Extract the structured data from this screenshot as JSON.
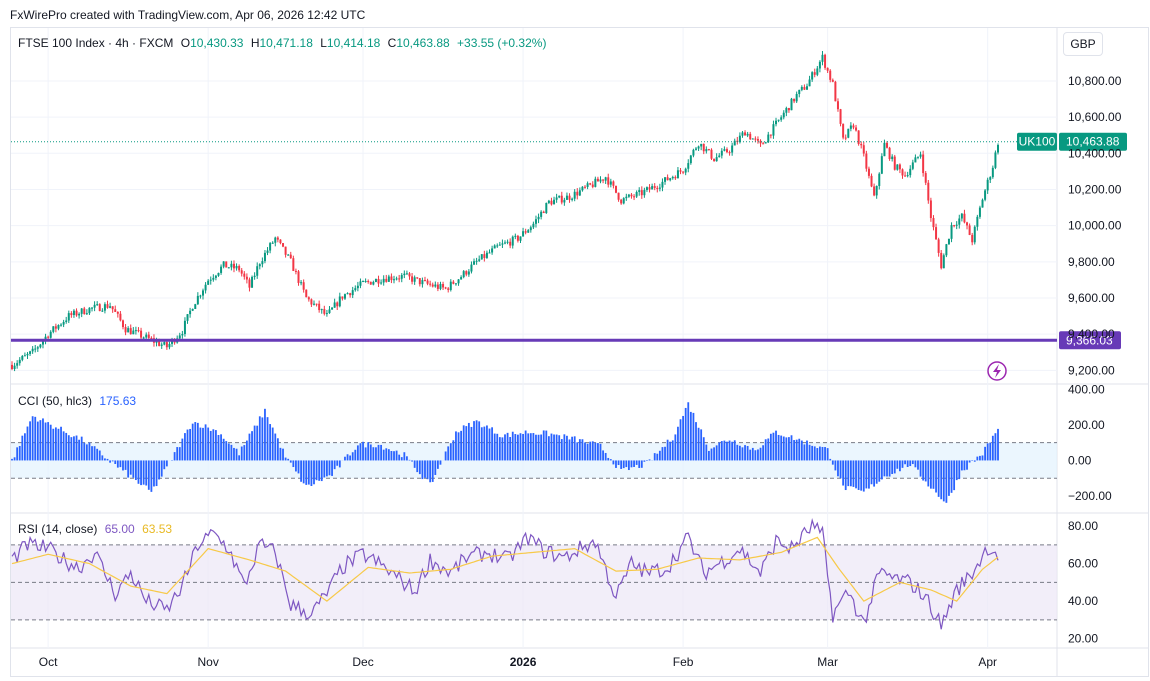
{
  "header": {
    "attribution": "FxWirePro created with TradingView.com, Apr 06, 2026 12:42 UTC",
    "currency": "GBP"
  },
  "colors": {
    "up": "#089981",
    "down": "#f23645",
    "cci": "#2962ff",
    "rsi": "#7e57c2",
    "rsi_ma": "#f7c948",
    "support": "#673ab7",
    "last_price_tag": "#089981"
  },
  "chart_data": [
    {
      "type": "candlestick",
      "title": "",
      "legend": {
        "symbol": "FTSE 100 Index · 4h · FXCM",
        "open_label": "O",
        "open": "10,430.33",
        "high_label": "H",
        "high": "10,471.18",
        "low_label": "L",
        "low": "10,414.18",
        "close_label": "C",
        "close": "10,463.88",
        "change": "+33.55 (+0.32%)"
      },
      "y_ticks": [
        "10,800.00",
        "10,600.00",
        "10,400.00",
        "10,200.00",
        "10,000.00",
        "9,800.00",
        "9,600.00",
        "9,400.00",
        "9,200.00"
      ],
      "y_tick_values": [
        10800,
        10600,
        10400,
        10200,
        10000,
        9800,
        9600,
        9400,
        9200
      ],
      "ylim": [
        9130,
        10960
      ],
      "x_ticks": [
        "Oct",
        "Nov",
        "Dec",
        "2026",
        "Feb",
        "Mar",
        "Apr"
      ],
      "x_tick_dates": [
        "2025-10-01",
        "2025-11-01",
        "2025-12-01",
        "2026-01-01",
        "2026-02-01",
        "2026-03-01",
        "2026-04-01"
      ],
      "x_range": [
        "2025-09-24",
        "2026-04-03"
      ],
      "path": [
        [
          "2025-09-24",
          9230
        ],
        [
          "2025-09-28",
          9300
        ],
        [
          "2025-10-01",
          9400
        ],
        [
          "2025-10-05",
          9500
        ],
        [
          "2025-10-09",
          9540
        ],
        [
          "2025-10-13",
          9560
        ],
        [
          "2025-10-16",
          9430
        ],
        [
          "2025-10-20",
          9380
        ],
        [
          "2025-10-24",
          9330
        ],
        [
          "2025-10-27",
          9420
        ],
        [
          "2025-10-29",
          9560
        ],
        [
          "2025-11-01",
          9700
        ],
        [
          "2025-11-04",
          9780
        ],
        [
          "2025-11-07",
          9760
        ],
        [
          "2025-11-09",
          9660
        ],
        [
          "2025-11-11",
          9800
        ],
        [
          "2025-11-14",
          9930
        ],
        [
          "2025-11-17",
          9800
        ],
        [
          "2025-11-20",
          9600
        ],
        [
          "2025-11-24",
          9500
        ],
        [
          "2025-11-27",
          9610
        ],
        [
          "2025-12-01",
          9680
        ],
        [
          "2025-12-05",
          9710
        ],
        [
          "2025-12-09",
          9720
        ],
        [
          "2025-12-13",
          9680
        ],
        [
          "2025-12-17",
          9650
        ],
        [
          "2025-12-20",
          9720
        ],
        [
          "2025-12-23",
          9800
        ],
        [
          "2025-12-27",
          9880
        ],
        [
          "2025-12-31",
          9930
        ],
        [
          "2026-01-03",
          10010
        ],
        [
          "2026-01-06",
          10130
        ],
        [
          "2026-01-10",
          10160
        ],
        [
          "2026-01-14",
          10220
        ],
        [
          "2026-01-17",
          10270
        ],
        [
          "2026-01-20",
          10140
        ],
        [
          "2026-01-24",
          10180
        ],
        [
          "2026-01-28",
          10240
        ],
        [
          "2026-02-01",
          10310
        ],
        [
          "2026-02-04",
          10460
        ],
        [
          "2026-02-07",
          10370
        ],
        [
          "2026-02-10",
          10420
        ],
        [
          "2026-02-13",
          10520
        ],
        [
          "2026-02-16",
          10440
        ],
        [
          "2026-02-20",
          10600
        ],
        [
          "2026-02-23",
          10720
        ],
        [
          "2026-02-25",
          10780
        ],
        [
          "2026-02-28",
          10930
        ],
        [
          "2026-03-02",
          10780
        ],
        [
          "2026-03-04",
          10470
        ],
        [
          "2026-03-06",
          10560
        ],
        [
          "2026-03-08",
          10380
        ],
        [
          "2026-03-10",
          10150
        ],
        [
          "2026-03-12",
          10450
        ],
        [
          "2026-03-14",
          10330
        ],
        [
          "2026-03-16",
          10280
        ],
        [
          "2026-03-19",
          10400
        ],
        [
          "2026-03-21",
          10050
        ],
        [
          "2026-03-23",
          9780
        ],
        [
          "2026-03-25",
          10000
        ],
        [
          "2026-03-27",
          10050
        ],
        [
          "2026-03-29",
          9920
        ],
        [
          "2026-03-31",
          10150
        ],
        [
          "2026-04-02",
          10330
        ],
        [
          "2026-04-03",
          10463
        ]
      ],
      "last_price": {
        "label": "UK100",
        "value": "10,463.88",
        "y": 10463.88
      },
      "support": {
        "value": "9,366.03",
        "y": 9366.03
      }
    },
    {
      "type": "histogram",
      "legend": {
        "name": "CCI (50, hlc3)",
        "value": "175.63"
      },
      "y_ticks": [
        "400.00",
        "200.00",
        "0.00",
        "−200.00"
      ],
      "y_tick_values": [
        400,
        200,
        0,
        -200
      ],
      "ylim": [
        -290,
        430
      ],
      "bands": [
        100,
        -100
      ],
      "path": [
        [
          "2025-09-24",
          0
        ],
        [
          "2025-09-28",
          250
        ],
        [
          "2025-10-03",
          180
        ],
        [
          "2025-10-08",
          110
        ],
        [
          "2025-10-12",
          20
        ],
        [
          "2025-10-16",
          -70
        ],
        [
          "2025-10-21",
          -180
        ],
        [
          "2025-10-24",
          -40
        ],
        [
          "2025-10-29",
          220
        ],
        [
          "2025-11-03",
          160
        ],
        [
          "2025-11-07",
          40
        ],
        [
          "2025-11-12",
          280
        ],
        [
          "2025-11-16",
          20
        ],
        [
          "2025-11-20",
          -150
        ],
        [
          "2025-11-25",
          -80
        ],
        [
          "2025-11-30",
          90
        ],
        [
          "2025-12-04",
          90
        ],
        [
          "2025-12-09",
          30
        ],
        [
          "2025-12-14",
          -140
        ],
        [
          "2025-12-19",
          160
        ],
        [
          "2025-12-23",
          220
        ],
        [
          "2025-12-28",
          140
        ],
        [
          "2026-01-02",
          160
        ],
        [
          "2026-01-06",
          150
        ],
        [
          "2026-01-11",
          120
        ],
        [
          "2026-01-16",
          80
        ],
        [
          "2026-01-20",
          -60
        ],
        [
          "2026-01-25",
          -20
        ],
        [
          "2026-01-30",
          130
        ],
        [
          "2026-02-02",
          320
        ],
        [
          "2026-02-06",
          70
        ],
        [
          "2026-02-10",
          120
        ],
        [
          "2026-02-15",
          60
        ],
        [
          "2026-02-19",
          160
        ],
        [
          "2026-02-24",
          110
        ],
        [
          "2026-03-01",
          60
        ],
        [
          "2026-03-04",
          -150
        ],
        [
          "2026-03-08",
          -180
        ],
        [
          "2026-03-12",
          -90
        ],
        [
          "2026-03-17",
          -20
        ],
        [
          "2026-03-21",
          -150
        ],
        [
          "2026-03-24",
          -240
        ],
        [
          "2026-03-27",
          -60
        ],
        [
          "2026-03-31",
          40
        ],
        [
          "2026-04-03",
          176
        ]
      ]
    },
    {
      "type": "line",
      "legend": {
        "name": "RSI (14, close)",
        "value": "65.00",
        "ma_value": "63.53"
      },
      "y_ticks": [
        "80.00",
        "60.00",
        "40.00",
        "20.00"
      ],
      "y_tick_values": [
        80,
        60,
        40,
        20
      ],
      "ylim": [
        15,
        87
      ],
      "bands": [
        70,
        50,
        30
      ],
      "series": [
        {
          "role": "rsi",
          "points": [
            [
              "2025-09-24",
              62
            ],
            [
              "2025-09-27",
              70
            ],
            [
              "2025-10-01",
              68
            ],
            [
              "2025-10-04",
              62
            ],
            [
              "2025-10-07",
              58
            ],
            [
              "2025-10-10",
              66
            ],
            [
              "2025-10-14",
              44
            ],
            [
              "2025-10-17",
              55
            ],
            [
              "2025-10-20",
              40
            ],
            [
              "2025-10-24",
              35
            ],
            [
              "2025-10-27",
              48
            ],
            [
              "2025-10-30",
              70
            ],
            [
              "2025-11-02",
              76
            ],
            [
              "2025-11-05",
              68
            ],
            [
              "2025-11-08",
              48
            ],
            [
              "2025-11-11",
              70
            ],
            [
              "2025-11-14",
              66
            ],
            [
              "2025-11-17",
              38
            ],
            [
              "2025-11-21",
              33
            ],
            [
              "2025-11-24",
              44
            ],
            [
              "2025-11-27",
              58
            ],
            [
              "2025-12-01",
              65
            ],
            [
              "2025-12-04",
              60
            ],
            [
              "2025-12-08",
              52
            ],
            [
              "2025-12-11",
              45
            ],
            [
              "2025-12-14",
              62
            ],
            [
              "2025-12-18",
              55
            ],
            [
              "2025-12-21",
              63
            ],
            [
              "2025-12-25",
              66
            ],
            [
              "2025-12-29",
              62
            ],
            [
              "2026-01-02",
              74
            ],
            [
              "2026-01-05",
              67
            ],
            [
              "2026-01-09",
              63
            ],
            [
              "2026-01-12",
              68
            ],
            [
              "2026-01-15",
              72
            ],
            [
              "2026-01-19",
              42
            ],
            [
              "2026-01-22",
              60
            ],
            [
              "2026-01-25",
              55
            ],
            [
              "2026-01-29",
              58
            ],
            [
              "2026-02-02",
              74
            ],
            [
              "2026-02-05",
              55
            ],
            [
              "2026-02-09",
              62
            ],
            [
              "2026-02-12",
              68
            ],
            [
              "2026-02-16",
              55
            ],
            [
              "2026-02-19",
              72
            ],
            [
              "2026-02-22",
              68
            ],
            [
              "2026-02-26",
              80
            ],
            [
              "2026-02-28",
              75
            ],
            [
              "2026-03-02",
              33
            ],
            [
              "2026-03-05",
              45
            ],
            [
              "2026-03-08",
              28
            ],
            [
              "2026-03-11",
              55
            ],
            [
              "2026-03-14",
              52
            ],
            [
              "2026-03-17",
              50
            ],
            [
              "2026-03-20",
              42
            ],
            [
              "2026-03-23",
              27
            ],
            [
              "2026-03-26",
              46
            ],
            [
              "2026-03-29",
              55
            ],
            [
              "2026-04-01",
              69
            ],
            [
              "2026-04-03",
              65
            ]
          ]
        },
        {
          "role": "rsi-ma",
          "points": [
            [
              "2025-09-24",
              60
            ],
            [
              "2025-10-01",
              65
            ],
            [
              "2025-10-09",
              60
            ],
            [
              "2025-10-17",
              48
            ],
            [
              "2025-10-24",
              44
            ],
            [
              "2025-11-01",
              68
            ],
            [
              "2025-11-09",
              62
            ],
            [
              "2025-11-16",
              56
            ],
            [
              "2025-11-24",
              40
            ],
            [
              "2025-12-02",
              58
            ],
            [
              "2025-12-10",
              55
            ],
            [
              "2025-12-18",
              57
            ],
            [
              "2025-12-26",
              64
            ],
            [
              "2026-01-03",
              66
            ],
            [
              "2026-01-11",
              68
            ],
            [
              "2026-01-19",
              56
            ],
            [
              "2026-01-27",
              57
            ],
            [
              "2026-02-04",
              63
            ],
            [
              "2026-02-12",
              62
            ],
            [
              "2026-02-20",
              66
            ],
            [
              "2026-02-27",
              74
            ],
            [
              "2026-03-03",
              58
            ],
            [
              "2026-03-08",
              40
            ],
            [
              "2026-03-15",
              50
            ],
            [
              "2026-03-21",
              46
            ],
            [
              "2026-03-26",
              40
            ],
            [
              "2026-03-31",
              57
            ],
            [
              "2026-04-03",
              63.5
            ]
          ]
        }
      ]
    }
  ]
}
